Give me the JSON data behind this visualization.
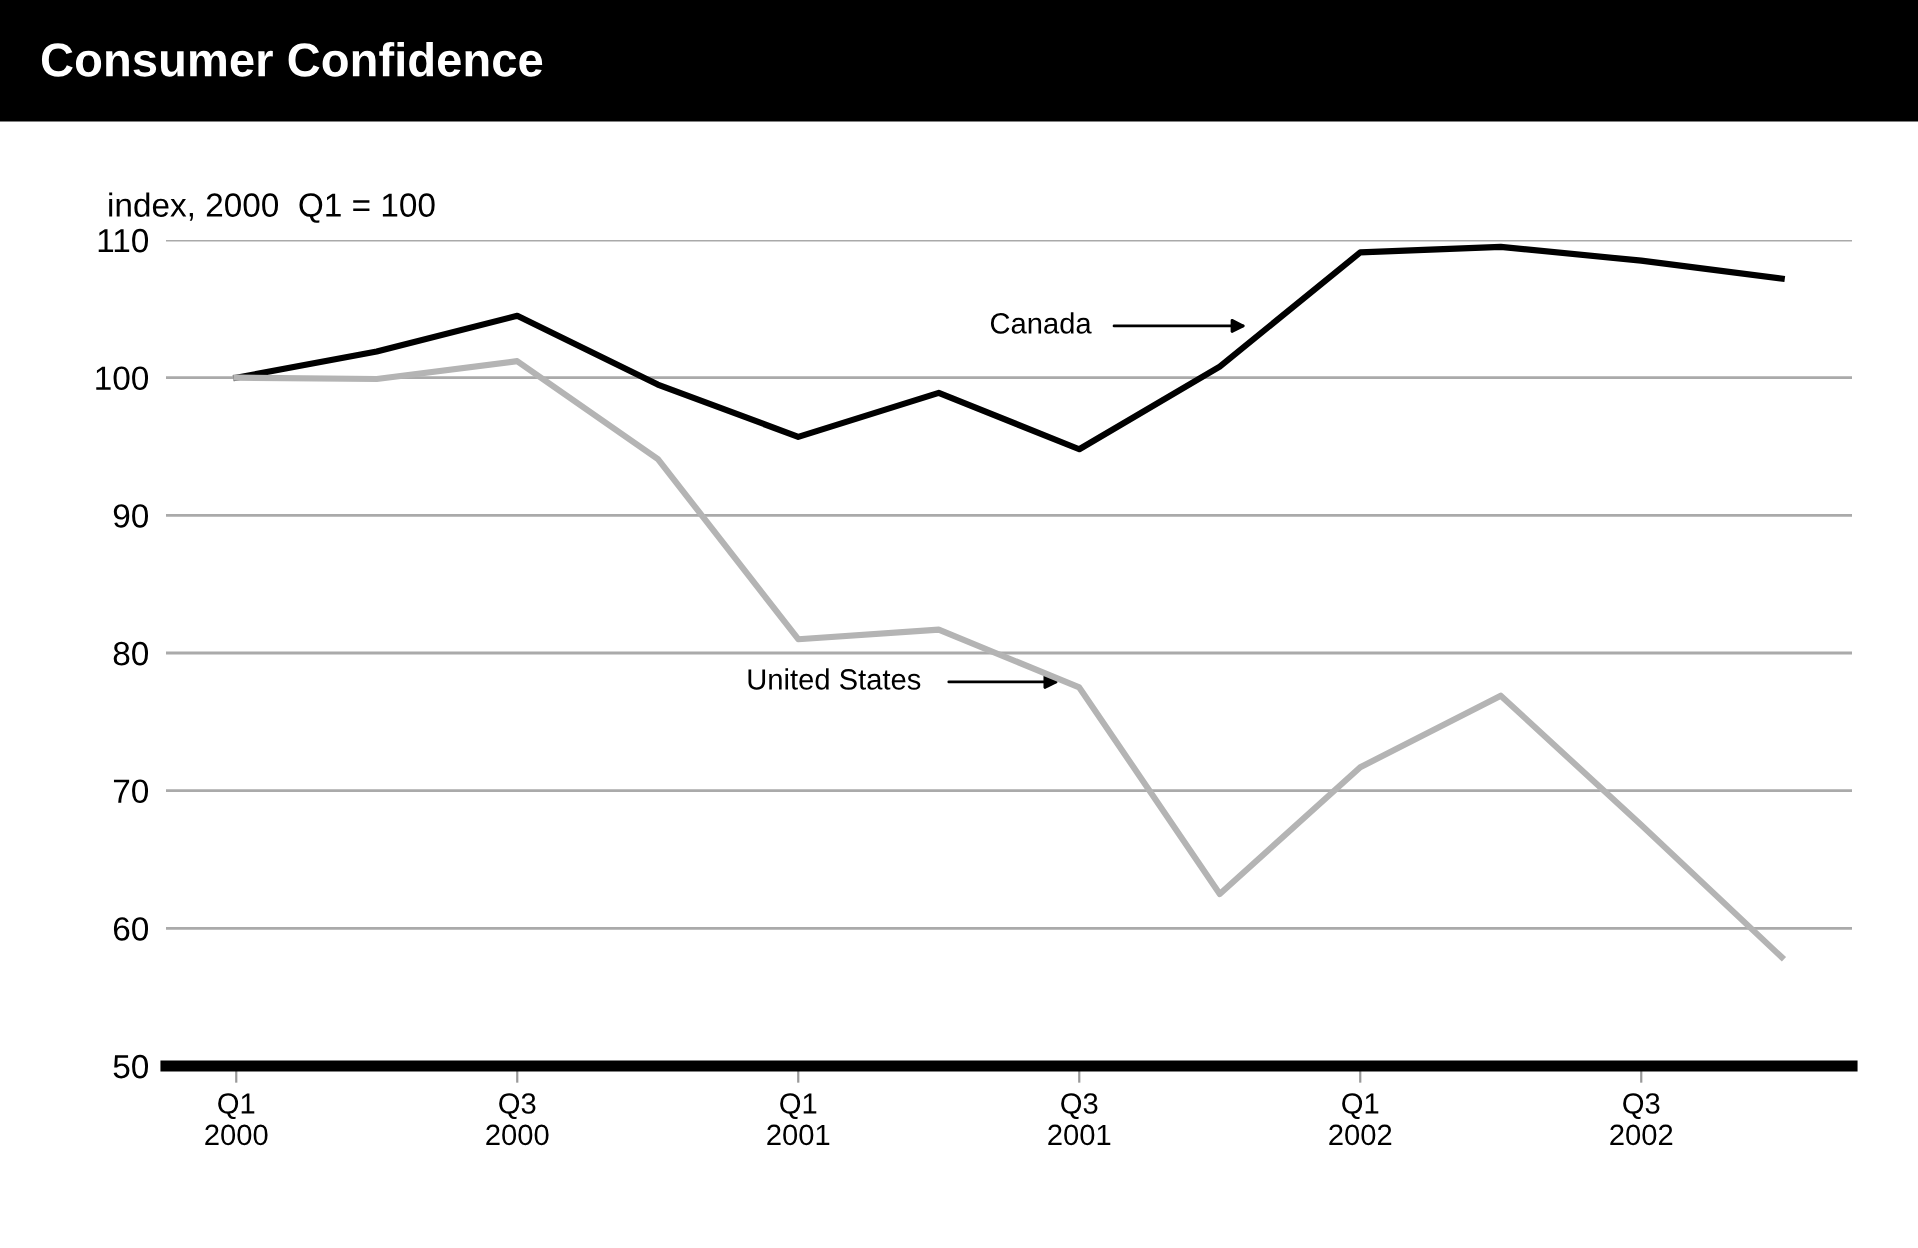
{
  "chart_data": {
    "type": "line",
    "title": "Consumer Confidence",
    "ylabel": "index, 2000  Q1 = 100",
    "categories": [
      "Q1\n2000",
      null,
      "Q3\n2000",
      null,
      "Q1\n2001",
      null,
      "Q3\n2001",
      null,
      "Q1\n2002",
      null,
      "Q3\n2002",
      null
    ],
    "annotations": [
      "Canada",
      "United States"
    ],
    "series": [
      {
        "color": "#000000",
        "values": [
          100,
          101.9,
          104.5,
          99.5,
          95.7,
          98.9,
          94.8,
          100.8,
          109.1,
          109.5,
          108.5,
          107.2
        ]
      },
      {
        "color": "#b4b4b4",
        "values": [
          100,
          99.9,
          101.2,
          94.1,
          81.0,
          81.7,
          77.5,
          62.5,
          71.7,
          76.9,
          67.5,
          57.9
        ]
      }
    ],
    "ylim": [
      50,
      110
    ],
    "yticks": [
      50,
      60,
      70,
      80,
      90,
      100,
      110
    ],
    "grid": "y",
    "legend": false,
    "marker": "none",
    "line_style": "solid"
  }
}
